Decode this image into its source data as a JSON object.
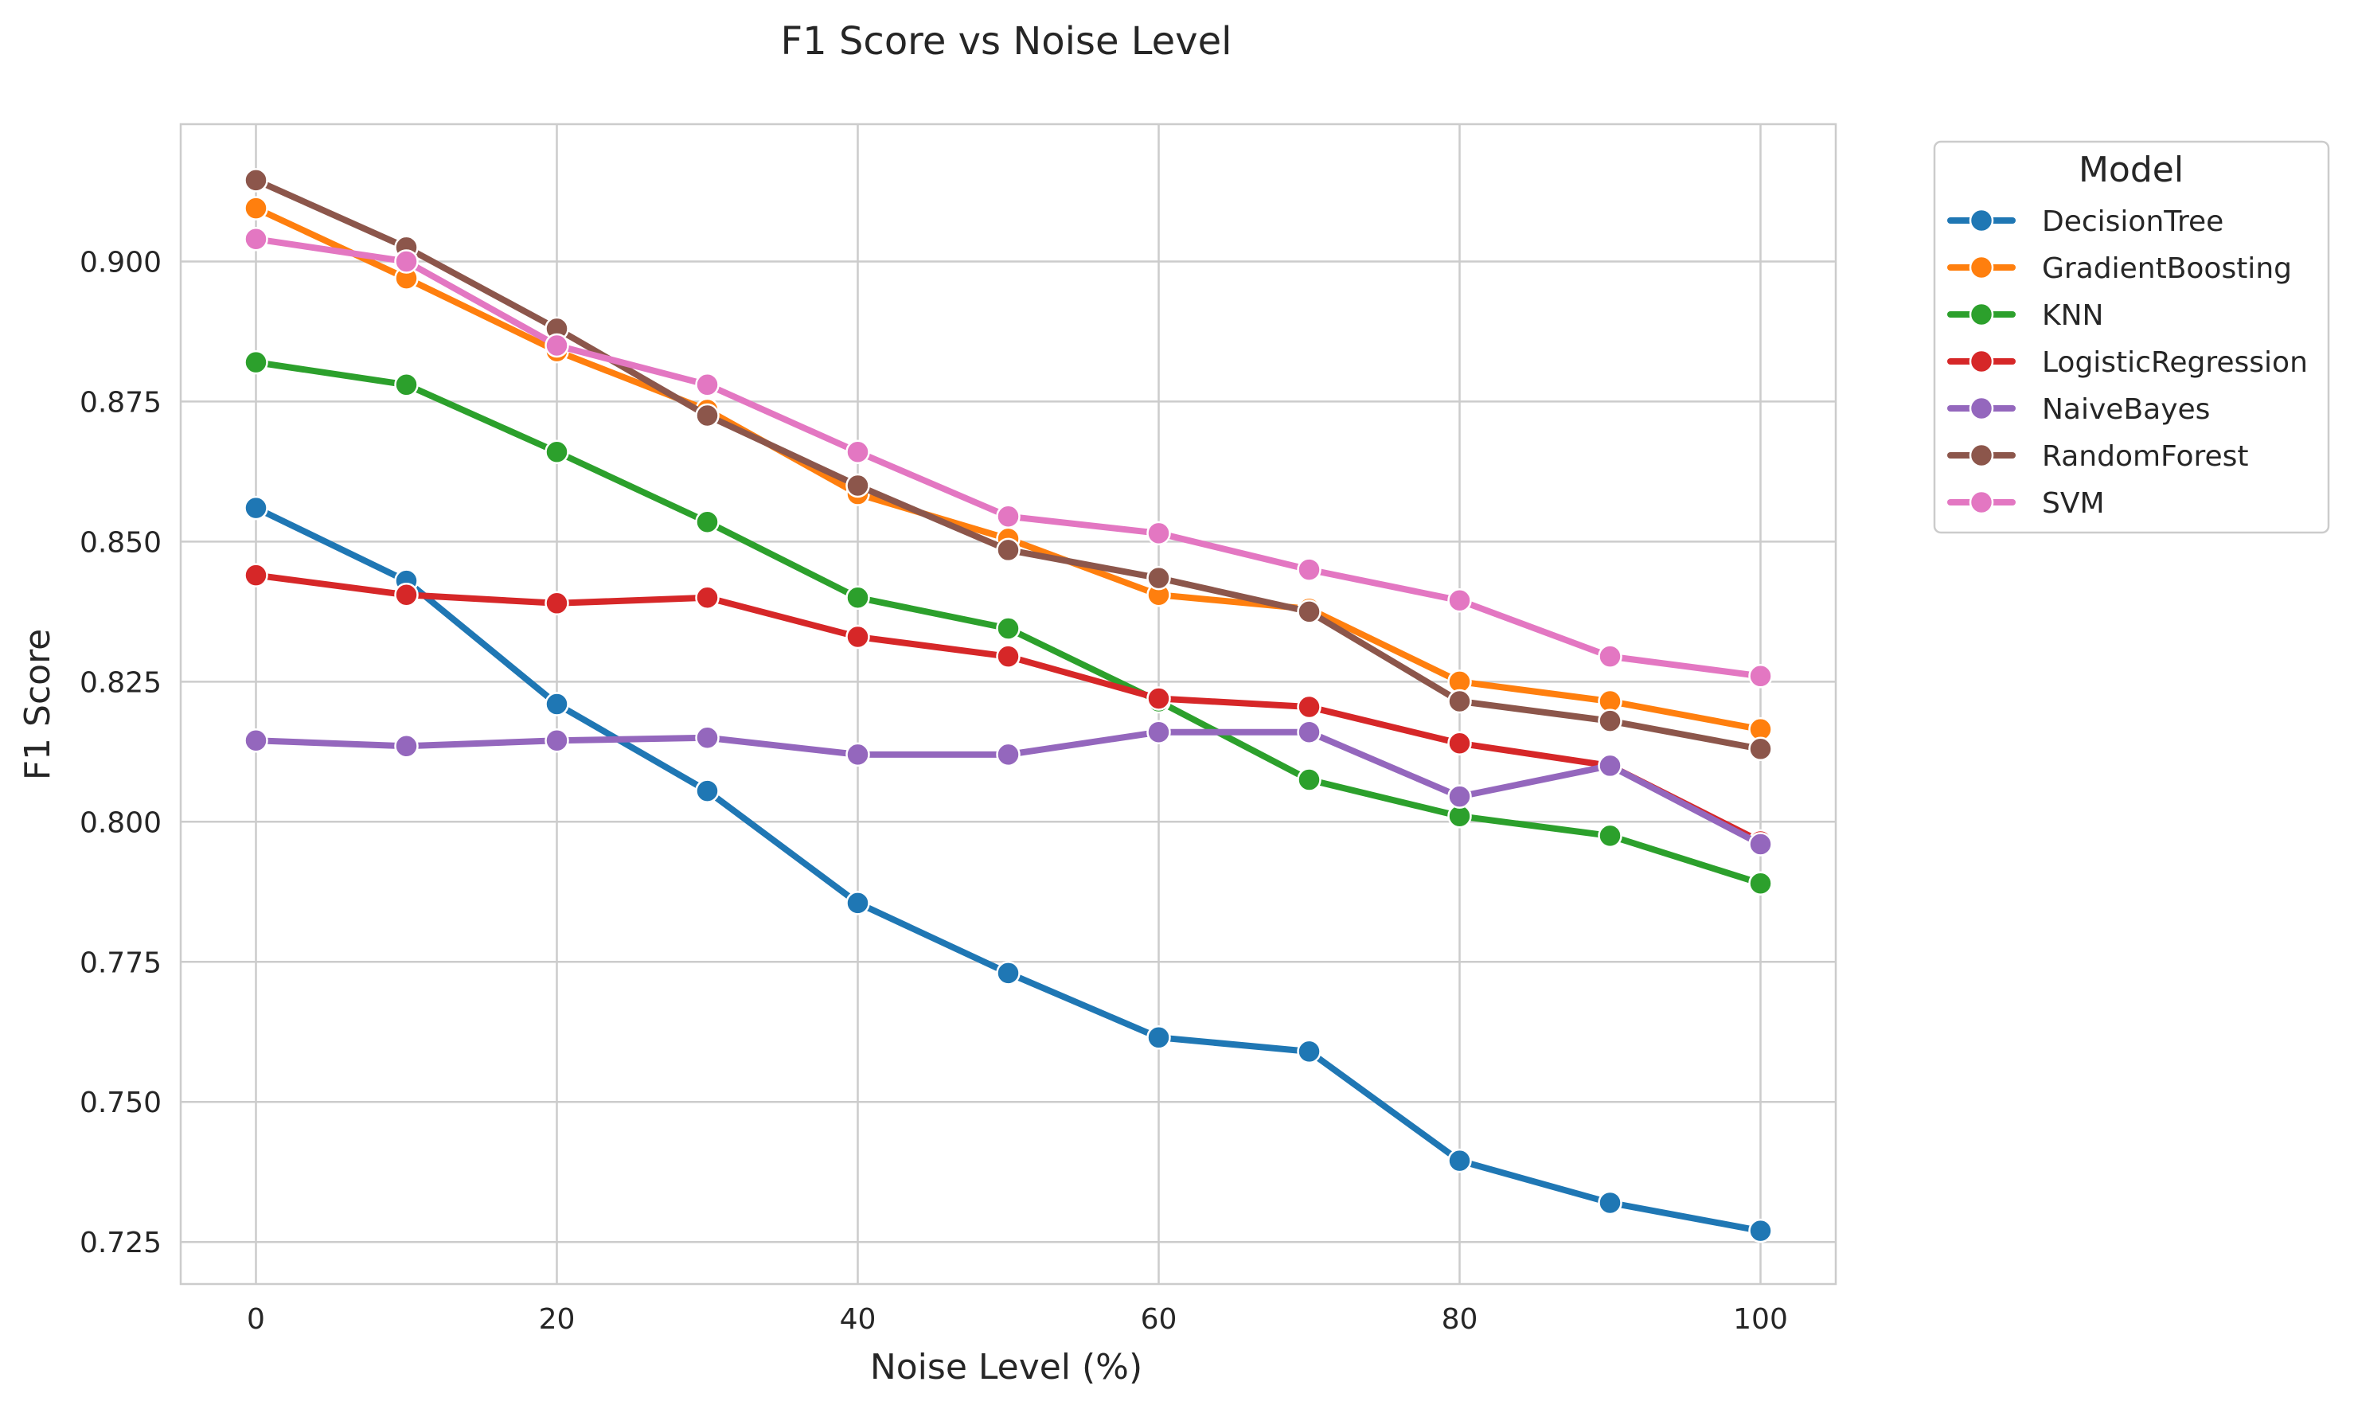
{
  "chart_data": {
    "type": "line",
    "title": "F1 Score vs Noise Level",
    "xlabel": "Noise Level (%)",
    "ylabel": "F1 Score",
    "xlim": [
      -5,
      105
    ],
    "ylim": [
      0.7175,
      0.9245
    ],
    "x_ticks": [
      0,
      20,
      40,
      60,
      80,
      100
    ],
    "y_ticks": [
      0.725,
      0.75,
      0.775,
      0.8,
      0.825,
      0.85,
      0.875,
      0.9
    ],
    "y_tick_labels": [
      "0.725",
      "0.750",
      "0.775",
      "0.800",
      "0.825",
      "0.850",
      "0.875",
      "0.900"
    ],
    "grid": true,
    "legend": {
      "title": "Model",
      "placement": "outside-right"
    },
    "x": [
      0,
      10,
      20,
      30,
      40,
      50,
      60,
      70,
      80,
      90,
      100
    ],
    "series": [
      {
        "name": "DecisionTree",
        "color": "#1f77b4",
        "values": [
          0.856,
          0.843,
          0.821,
          0.8055,
          0.7855,
          0.773,
          0.7615,
          0.759,
          0.7395,
          0.732,
          0.727
        ]
      },
      {
        "name": "GradientBoosting",
        "color": "#ff7f0e",
        "values": [
          0.9095,
          0.897,
          0.884,
          0.8735,
          0.8585,
          0.8505,
          0.8405,
          0.838,
          0.825,
          0.8215,
          0.8165
        ]
      },
      {
        "name": "KNN",
        "color": "#2ca02c",
        "values": [
          0.882,
          0.878,
          0.866,
          0.8535,
          0.84,
          0.8345,
          0.8215,
          0.8075,
          0.801,
          0.7975,
          0.789
        ]
      },
      {
        "name": "LogisticRegression",
        "color": "#d62728",
        "values": [
          0.844,
          0.8405,
          0.839,
          0.84,
          0.833,
          0.8295,
          0.822,
          0.8205,
          0.814,
          0.81,
          0.7965
        ]
      },
      {
        "name": "NaiveBayes",
        "color": "#9467bd",
        "values": [
          0.8145,
          0.8135,
          0.8145,
          0.815,
          0.812,
          0.812,
          0.816,
          0.816,
          0.8045,
          0.81,
          0.796
        ]
      },
      {
        "name": "RandomForest",
        "color": "#8c564b",
        "values": [
          0.9145,
          0.9025,
          0.888,
          0.8725,
          0.86,
          0.8485,
          0.8435,
          0.8375,
          0.8215,
          0.818,
          0.813
        ]
      },
      {
        "name": "SVM",
        "color": "#e377c2",
        "values": [
          0.904,
          0.9,
          0.885,
          0.878,
          0.866,
          0.8545,
          0.8515,
          0.845,
          0.8395,
          0.8295,
          0.826
        ]
      }
    ]
  }
}
